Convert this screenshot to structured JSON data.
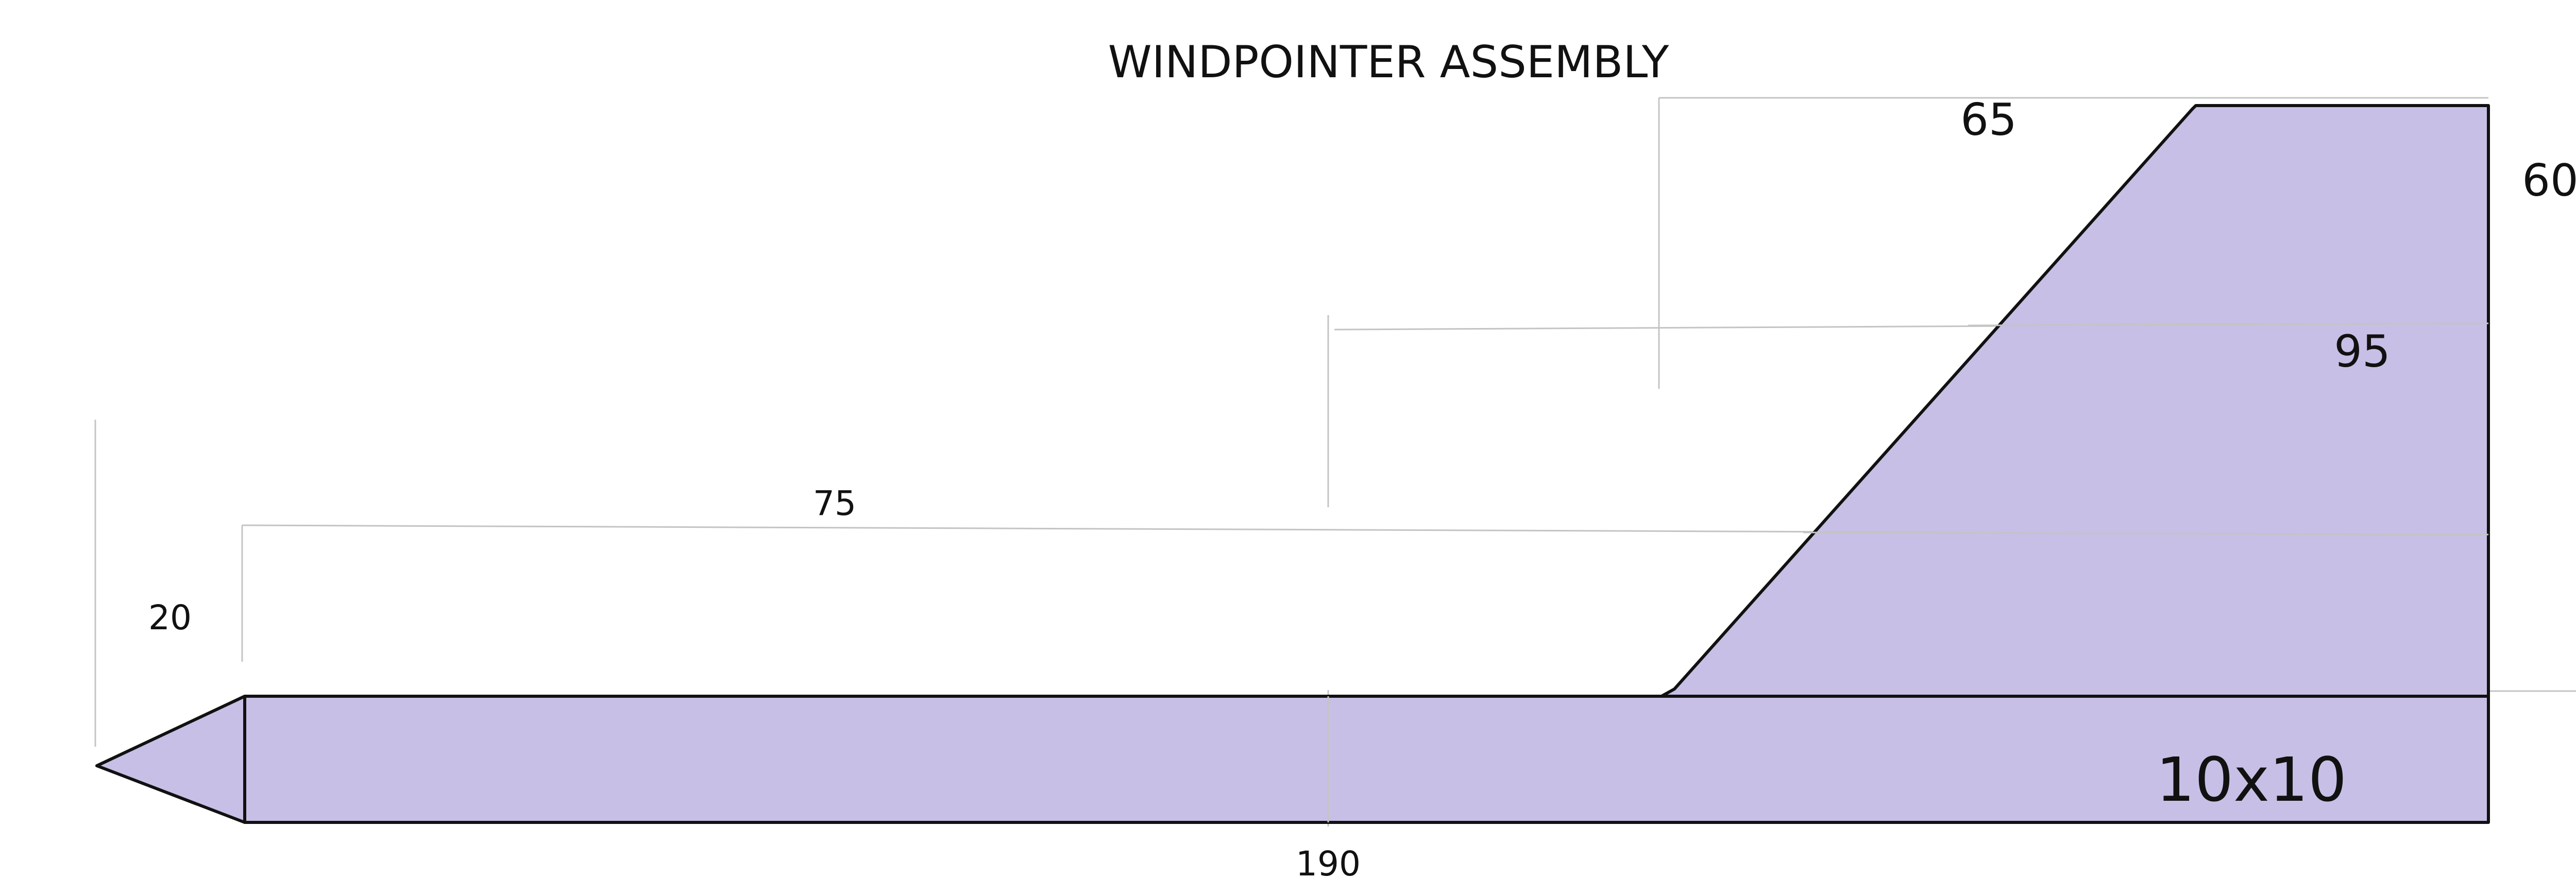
{
  "title": "WINDPOINTER ASSEMBLY",
  "colors": {
    "fill": "#c7bfe5",
    "outline": "#111111",
    "guide": "#c4c4c4",
    "background": "#ffffff"
  },
  "dimensions": {
    "fin_top_width": "65",
    "fin_height": "60",
    "fin_overall": "95",
    "fin_offset": "75",
    "pointer_height": "20",
    "body_length": "190",
    "body_section": "10x10"
  }
}
